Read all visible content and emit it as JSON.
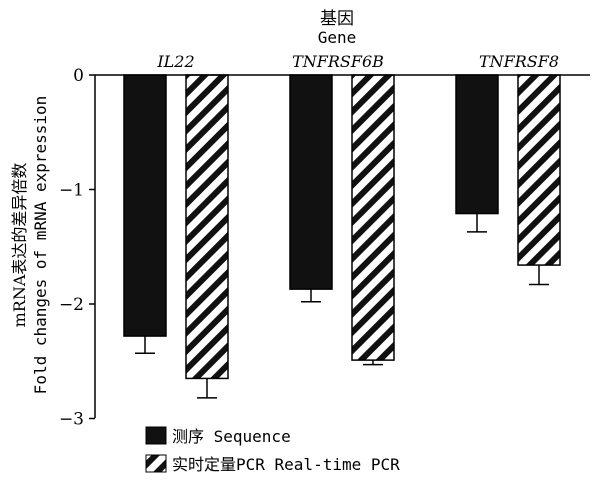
{
  "chart_data": {
    "type": "bar",
    "title": "基因",
    "subtitle": "Gene",
    "ylabel_cn": "mRNA表达的差异倍数",
    "ylabel_en": "Fold changes of mRNA expression",
    "categories": [
      "IL22",
      "TNFRSF6B",
      "TNFRSF8"
    ],
    "yticks": [
      "0",
      "−1",
      "−2",
      "−3"
    ],
    "ytick_values": [
      0,
      -1,
      -2,
      -3
    ],
    "ylim": [
      -3,
      0
    ],
    "series": [
      {
        "name": "测序 Sequence",
        "fill": "solid",
        "values": [
          -2.28,
          -1.87,
          -1.21
        ],
        "errors": [
          0.15,
          0.11,
          0.16
        ]
      },
      {
        "name": "实时定量PCR Real-time PCR",
        "fill": "hatched",
        "values": [
          -2.65,
          -2.49,
          -1.66
        ],
        "errors": [
          0.17,
          0.04,
          0.17
        ]
      }
    ],
    "legend": "bottom-left",
    "grid": false
  }
}
